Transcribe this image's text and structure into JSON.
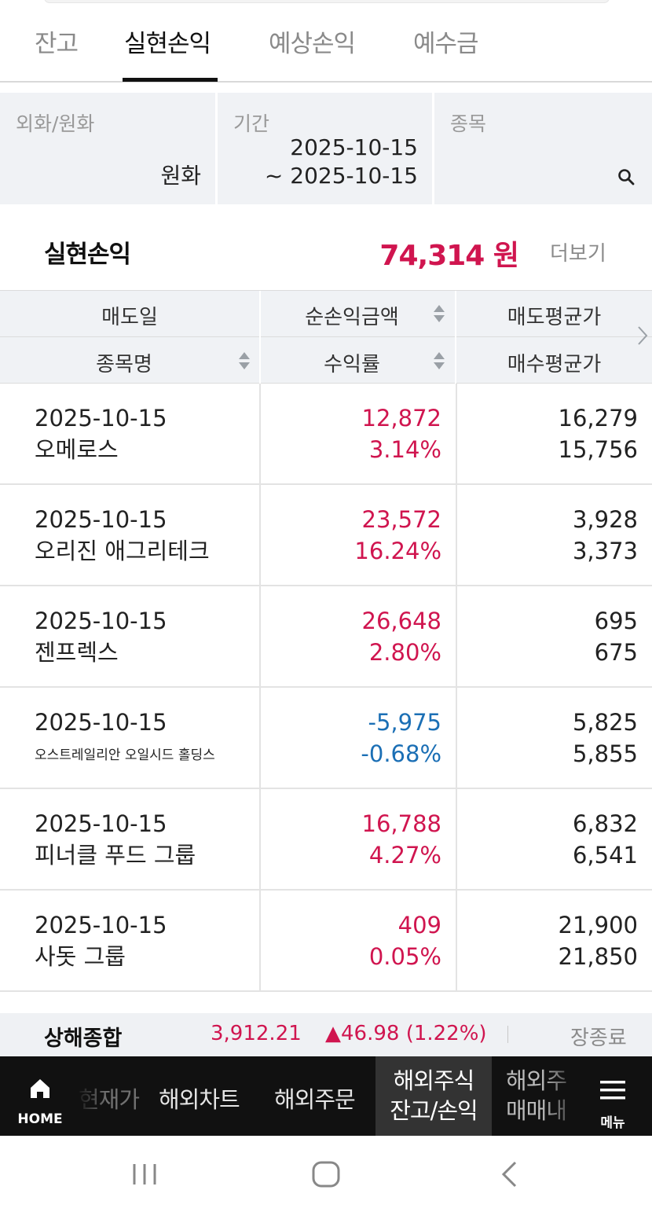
{
  "tabs": [
    {
      "label": "잔고"
    },
    {
      "label": "실현손익"
    },
    {
      "label": "예상손익"
    },
    {
      "label": "예수금"
    }
  ],
  "filter": {
    "currency_label": "외화/원화",
    "currency_value": "원화",
    "period_label": "기간",
    "period_from": "2025-10-15",
    "period_to": "~ 2025-10-15",
    "stock_label": "종목"
  },
  "summary": {
    "title": "실현손익",
    "amount": "74,314 원",
    "more_label": "더보기"
  },
  "table": {
    "headers": {
      "sell_date": "매도일",
      "net_profit": "순손익금액",
      "sell_avg": "매도평균가",
      "stock_name": "종목명",
      "return_rate": "수익률",
      "buy_avg": "매수평균가"
    },
    "rows": [
      {
        "date": "2025-10-15",
        "name": "오메로스",
        "profit": "12,872",
        "rate": "3.14%",
        "sell_avg": "16,279",
        "buy_avg": "15,756",
        "sign": "pos"
      },
      {
        "date": "2025-10-15",
        "name": "오리진 애그리테크",
        "profit": "23,572",
        "rate": "16.24%",
        "sell_avg": "3,928",
        "buy_avg": "3,373",
        "sign": "pos"
      },
      {
        "date": "2025-10-15",
        "name": "젠프렉스",
        "profit": "26,648",
        "rate": "2.80%",
        "sell_avg": "695",
        "buy_avg": "675",
        "sign": "pos"
      },
      {
        "date": "2025-10-15",
        "name": "오스트레일리안 오일시드 홀딩스",
        "profit": "-5,975",
        "rate": "-0.68%",
        "sell_avg": "5,825",
        "buy_avg": "5,855",
        "sign": "neg"
      },
      {
        "date": "2025-10-15",
        "name": "피너클 푸드 그룹",
        "profit": "16,788",
        "rate": "4.27%",
        "sell_avg": "6,832",
        "buy_avg": "6,541",
        "sign": "pos"
      },
      {
        "date": "2025-10-15",
        "name": "사돗 그룹",
        "profit": "409",
        "rate": "0.05%",
        "sell_avg": "21,900",
        "buy_avg": "21,850",
        "sign": "pos"
      }
    ]
  },
  "ticker": {
    "name": "상해종합",
    "price": "3,912.21",
    "change": "▲46.98 (1.22%)",
    "status": "장종료"
  },
  "bottom_nav": {
    "home_label": "HOME",
    "item_current_price": "현재가",
    "item_chart": "해외차트",
    "item_order": "해외주문",
    "item_balance_line1": "해외주식",
    "item_balance_line2": "잔고/손익",
    "item_trades_line1": "해외주",
    "item_trades_line2": "매매내",
    "menu_label": "메뉴"
  },
  "colors": {
    "positive": "#d0154f",
    "negative": "#1b6fb5"
  }
}
